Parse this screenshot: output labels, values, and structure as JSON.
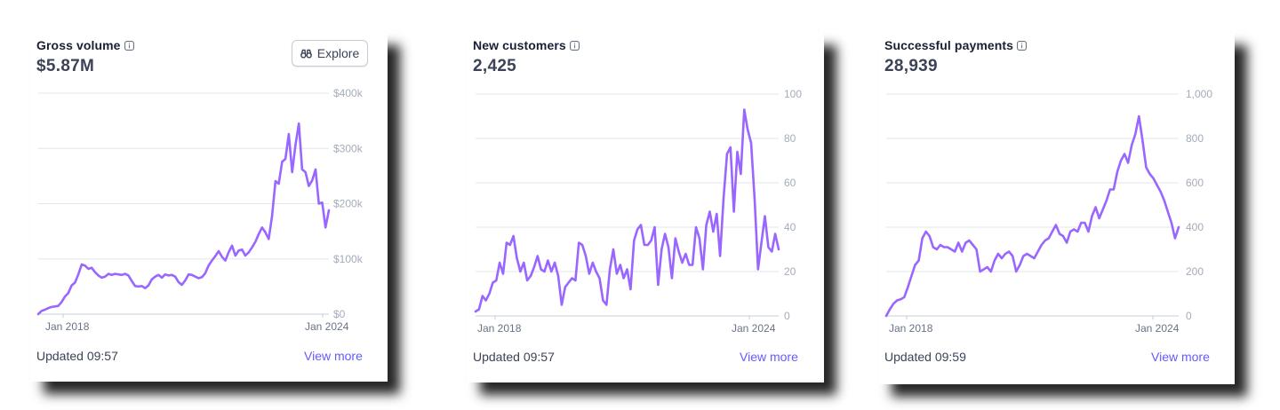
{
  "cards": [
    {
      "title": "Gross volume",
      "value": "$5.87M",
      "updated": "Updated 09:57",
      "link": "View more",
      "explore": "Explore",
      "chart_data": {
        "type": "line",
        "title": "Gross volume",
        "xlabel": "",
        "ylabel": "",
        "x_ticks": [
          "Jan 2018",
          "Jan 2024"
        ],
        "y_tick_labels": [
          "$0",
          "$100k",
          "$200k",
          "$300k",
          "$400k"
        ],
        "y_ticks": [
          0,
          100000,
          200000,
          300000,
          400000
        ],
        "ylim": [
          0,
          400000
        ],
        "line_color": "#9966ff",
        "values": [
          0,
          6000,
          8000,
          11000,
          13000,
          14000,
          15000,
          22000,
          32000,
          38000,
          52000,
          57000,
          72000,
          90000,
          88000,
          82000,
          84000,
          76000,
          70000,
          66000,
          68000,
          73000,
          71000,
          73000,
          72000,
          71000,
          73000,
          70000,
          60000,
          51000,
          50000,
          51000,
          47000,
          52000,
          63000,
          68000,
          71000,
          66000,
          72000,
          70000,
          71000,
          68000,
          58000,
          53000,
          61000,
          72000,
          71000,
          68000,
          65000,
          67000,
          74000,
          88000,
          97000,
          105000,
          114000,
          104000,
          97000,
          112000,
          124000,
          106000,
          115000,
          117000,
          106000,
          112000,
          121000,
          131000,
          145000,
          157000,
          148000,
          136000,
          178000,
          241000,
          236000,
          276000,
          281000,
          326000,
          257000,
          306000,
          345000,
          262000,
          257000,
          232000,
          242000,
          262000,
          200000,
          202000,
          157000,
          188000
        ]
      }
    },
    {
      "title": "New customers",
      "value": "2,425",
      "updated": "Updated 09:57",
      "link": "View more",
      "chart_data": {
        "type": "line",
        "title": "New customers",
        "xlabel": "",
        "ylabel": "",
        "x_ticks": [
          "Jan 2018",
          "Jan 2024"
        ],
        "y_tick_labels": [
          "0",
          "20",
          "40",
          "60",
          "80",
          "100"
        ],
        "y_ticks": [
          0,
          20,
          40,
          60,
          80,
          100
        ],
        "ylim": [
          0,
          100
        ],
        "line_color": "#9966ff",
        "values": [
          2,
          3,
          9,
          7,
          10,
          15,
          16,
          24,
          19,
          33,
          32,
          36,
          26,
          20,
          24,
          16,
          18,
          22,
          27,
          21,
          20,
          25,
          20,
          24,
          18,
          5,
          13,
          15,
          17,
          16,
          33,
          32,
          27,
          19,
          24,
          20,
          17,
          7,
          5,
          21,
          30,
          19,
          23,
          17,
          21,
          12,
          34,
          39,
          41,
          32,
          32,
          34,
          40,
          14,
          30,
          37,
          31,
          17,
          35,
          29,
          24,
          28,
          23,
          23,
          40,
          35,
          21,
          41,
          47,
          38,
          46,
          27,
          53,
          73,
          76,
          47,
          74,
          64,
          93,
          84,
          78,
          53,
          21,
          33,
          45,
          31,
          29,
          37,
          30
        ]
      }
    },
    {
      "title": "Successful payments",
      "value": "28,939",
      "updated": "Updated 09:59",
      "link": "View more",
      "chart_data": {
        "type": "line",
        "title": "Successful payments",
        "xlabel": "",
        "ylabel": "",
        "x_ticks": [
          "Jan 2018",
          "Jan 2024"
        ],
        "y_tick_labels": [
          "0",
          "200",
          "400",
          "600",
          "800",
          "1,000"
        ],
        "y_ticks": [
          0,
          200,
          400,
          600,
          800,
          1000
        ],
        "ylim": [
          0,
          1000
        ],
        "line_color": "#9966ff",
        "values": [
          0,
          30,
          55,
          70,
          75,
          85,
          130,
          180,
          230,
          250,
          350,
          380,
          360,
          310,
          300,
          320,
          310,
          310,
          300,
          290,
          330,
          290,
          330,
          340,
          320,
          300,
          200,
          210,
          220,
          200,
          250,
          280,
          260,
          280,
          290,
          270,
          200,
          230,
          270,
          280,
          270,
          260,
          290,
          320,
          340,
          350,
          380,
          410,
          370,
          360,
          330,
          380,
          390,
          380,
          420,
          420,
          380,
          450,
          490,
          440,
          480,
          520,
          570,
          570,
          650,
          700,
          730,
          690,
          770,
          820,
          900,
          790,
          670,
          640,
          620,
          590,
          560,
          520,
          470,
          420,
          350,
          400
        ]
      }
    }
  ]
}
